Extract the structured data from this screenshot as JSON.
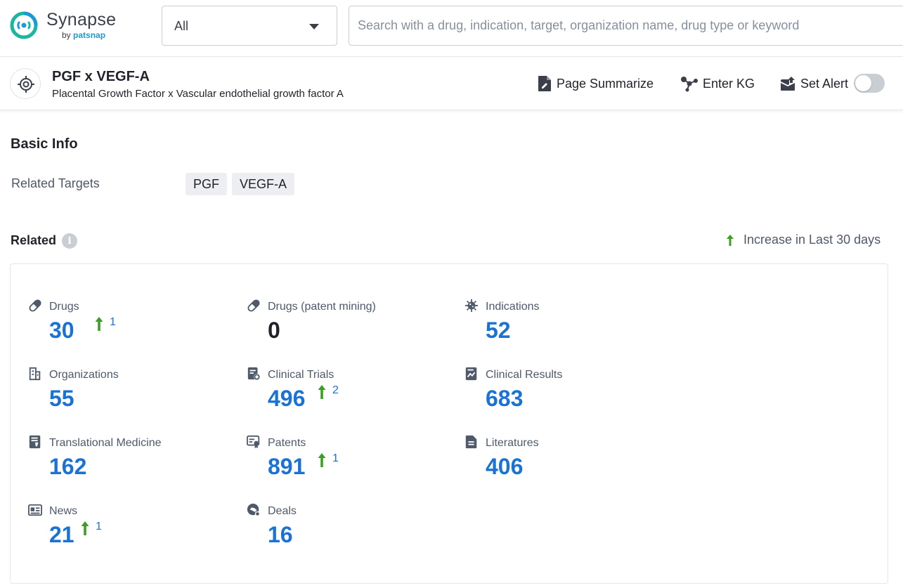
{
  "brand": {
    "name": "Synapse",
    "by_prefix": "by",
    "by_name": "patsnap"
  },
  "scope": {
    "selected": "All"
  },
  "search": {
    "placeholder": "Search with a drug, indication, target, organization name, drug type or keyword"
  },
  "header": {
    "title": "PGF x VEGF-A",
    "subtitle": "Placental Growth Factor x Vascular endothelial growth factor A",
    "actions": {
      "summarize": "Page Summarize",
      "kg": "Enter KG",
      "alert": "Set Alert"
    },
    "alert_enabled": false
  },
  "basic_info": {
    "title": "Basic Info",
    "related_targets_label": "Related Targets",
    "targets": [
      "PGF",
      "VEGF-A"
    ]
  },
  "related": {
    "title": "Related",
    "legend": "Increase in Last 30 days",
    "stats": [
      {
        "label": "Drugs",
        "icon": "pill-icon",
        "value": "30",
        "increase": "1"
      },
      {
        "label": "Drugs (patent mining)",
        "icon": "pill-icon",
        "value": "0",
        "increase": null
      },
      {
        "label": "Indications",
        "icon": "virus-icon",
        "value": "52",
        "increase": null
      },
      {
        "label": "Organizations",
        "icon": "building-icon",
        "value": "55",
        "increase": null
      },
      {
        "label": "Clinical Trials",
        "icon": "clipboard-icon",
        "value": "496",
        "increase": "2"
      },
      {
        "label": "Clinical Results",
        "icon": "chart-doc-icon",
        "value": "683",
        "increase": null
      },
      {
        "label": "Translational Medicine",
        "icon": "flask-doc-icon",
        "value": "162",
        "increase": null
      },
      {
        "label": "Patents",
        "icon": "certificate-icon",
        "value": "891",
        "increase": "1"
      },
      {
        "label": "Literatures",
        "icon": "document-icon",
        "value": "406",
        "increase": null
      },
      {
        "label": "News",
        "icon": "newspaper-icon",
        "value": "21",
        "increase": "1"
      },
      {
        "label": "Deals",
        "icon": "handshake-icon",
        "value": "16",
        "increase": null
      }
    ]
  },
  "colors": {
    "accent": "#1a73d4",
    "increase": "#3aa024",
    "brand_teal": "#1cb59f",
    "brand_blue": "#1c9ad6"
  }
}
